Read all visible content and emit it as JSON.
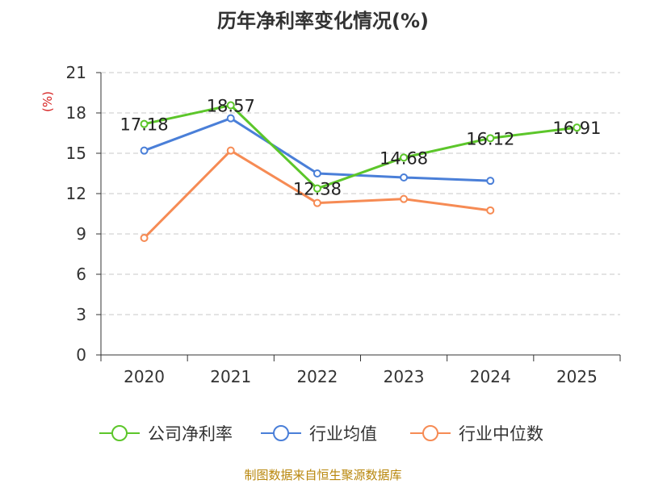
{
  "chart_data": {
    "type": "line",
    "title": "历年净利率变化情况(%)",
    "ylabel": "(%)",
    "xlabel": "",
    "categories": [
      "2020",
      "2021",
      "2022",
      "2023",
      "2024",
      "2025"
    ],
    "ylim": [
      0,
      21
    ],
    "yticks": [
      0,
      3,
      6,
      9,
      12,
      15,
      18,
      21
    ],
    "grid": true,
    "legend_position": "bottom",
    "series": [
      {
        "name": "公司净利率",
        "color": "#5cc62a",
        "values": [
          17.18,
          18.57,
          12.38,
          14.68,
          16.12,
          16.91
        ],
        "labels": [
          "17.18",
          "18.57",
          "12.38",
          "14.68",
          "16.12",
          "16.91"
        ]
      },
      {
        "name": "行业均值",
        "color": "#4a7fd8",
        "values": [
          15.2,
          17.6,
          13.5,
          13.2,
          12.95,
          null
        ],
        "labels": null
      },
      {
        "name": "行业中位数",
        "color": "#f68b54",
        "values": [
          8.7,
          15.2,
          11.3,
          11.6,
          10.75,
          null
        ],
        "labels": null
      }
    ]
  },
  "footer": {
    "source": "制图数据来自恒生聚源数据库"
  }
}
